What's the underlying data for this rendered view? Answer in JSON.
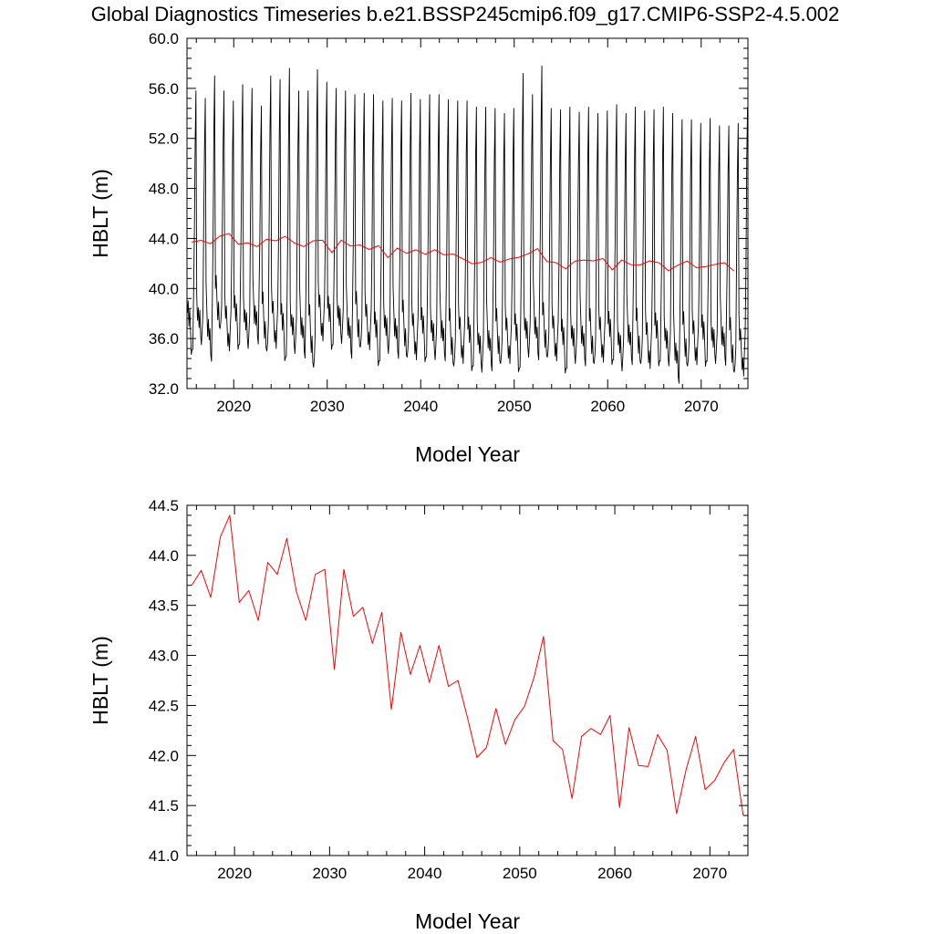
{
  "figure": {
    "title": "Global Diagnostics Timeseries b.e21.BSSP245cmip6.f09_g17.CMIP6-SSP2-4.5.002"
  },
  "colors": {
    "monthly": "#000000",
    "annual": "#ff0000"
  },
  "chart_data": [
    {
      "type": "line",
      "xlabel": "Model Year",
      "ylabel": "HBLT (m)",
      "xlim": [
        2015,
        2075
      ],
      "ylim": [
        32.0,
        60.0
      ],
      "x_ticks": [
        2020,
        2030,
        2040,
        2050,
        2060,
        2070
      ],
      "x_tick_labels": [
        "2020",
        "2030",
        "2040",
        "2050",
        "2060",
        "2070"
      ],
      "y_ticks": [
        32.0,
        36.0,
        40.0,
        44.0,
        48.0,
        52.0,
        56.0,
        60.0
      ],
      "y_tick_labels": [
        "32.0",
        "36.0",
        "40.0",
        "44.0",
        "48.0",
        "52.0",
        "56.0",
        "60.0"
      ],
      "grid": false,
      "series": [
        {
          "color": "#000000",
          "frequency": "monthly",
          "note_values": "annual max and min of the monthly seasonal cycle",
          "years": [
            2015,
            2016,
            2017,
            2018,
            2019,
            2020,
            2021,
            2022,
            2023,
            2024,
            2025,
            2026,
            2027,
            2028,
            2029,
            2030,
            2031,
            2032,
            2033,
            2034,
            2035,
            2036,
            2037,
            2038,
            2039,
            2040,
            2041,
            2042,
            2043,
            2044,
            2045,
            2046,
            2047,
            2048,
            2049,
            2050,
            2051,
            2052,
            2053,
            2054,
            2055,
            2056,
            2057,
            2058,
            2059,
            2060,
            2061,
            2062,
            2063,
            2064,
            2065,
            2066,
            2067,
            2068,
            2069,
            2070,
            2071,
            2072,
            2073,
            2074
          ],
          "annual_max": [
            55.8,
            55.2,
            57.0,
            55.8,
            55.0,
            56.3,
            56.0,
            54.6,
            57.0,
            56.7,
            57.6,
            55.8,
            55.8,
            57.5,
            56.5,
            56.0,
            55.8,
            55.5,
            55.6,
            55.5,
            55.0,
            55.2,
            55.0,
            55.6,
            55.1,
            55.5,
            55.5,
            55.1,
            55.0,
            55.0,
            54.5,
            54.5,
            54.4,
            54.0,
            54.4,
            57.2,
            55.5,
            57.8,
            54.4,
            54.3,
            54.5,
            54.1,
            54.5,
            54.0,
            54.2,
            54.7,
            54.0,
            54.5,
            54.2,
            54.3,
            54.5,
            54.0,
            53.5,
            53.5,
            53.2,
            53.6,
            53.0,
            53.0,
            53.2,
            54.5
          ],
          "annual_min": [
            35.1,
            35.5,
            34.7,
            36.8,
            35.0,
            35.5,
            35.2,
            36.2,
            35.0,
            35.2,
            34.5,
            34.8,
            35.0,
            33.7,
            35.8,
            35.5,
            35.6,
            35.0,
            35.3,
            35.1,
            34.2,
            34.8,
            35.0,
            34.5,
            34.3,
            34.5,
            34.3,
            34.8,
            33.8,
            34.0,
            33.8,
            33.3,
            34.0,
            34.0,
            34.0,
            33.6,
            34.5,
            34.8,
            34.5,
            34.2,
            33.6,
            34.0,
            34.4,
            34.0,
            34.1,
            34.3,
            33.4,
            34.5,
            34.0,
            33.6,
            34.2,
            33.8,
            33.0,
            33.8,
            33.9,
            34.2,
            34.0,
            34.5,
            33.3,
            33.0
          ]
        },
        {
          "color": "#ff0000",
          "frequency": "annual mean",
          "x": [
            2015.5,
            2016.5,
            2017.5,
            2018.5,
            2019.5,
            2020.5,
            2021.5,
            2022.5,
            2023.5,
            2024.5,
            2025.5,
            2026.5,
            2027.5,
            2028.5,
            2029.5,
            2030.5,
            2031.5,
            2032.5,
            2033.5,
            2034.5,
            2035.5,
            2036.5,
            2037.5,
            2038.5,
            2039.5,
            2040.5,
            2041.5,
            2042.5,
            2043.5,
            2044.5,
            2045.5,
            2046.5,
            2047.5,
            2048.5,
            2049.5,
            2050.5,
            2051.5,
            2052.5,
            2053.5,
            2054.5,
            2055.5,
            2056.5,
            2057.5,
            2058.5,
            2059.5,
            2060.5,
            2061.5,
            2062.5,
            2063.5,
            2064.5,
            2065.5,
            2066.5,
            2067.5,
            2068.5,
            2069.5,
            2070.5,
            2071.5,
            2072.5,
            2073.5
          ],
          "values": [
            43.7,
            43.85,
            43.58,
            44.18,
            44.4,
            43.53,
            43.65,
            43.35,
            43.93,
            43.81,
            44.17,
            43.64,
            43.35,
            43.81,
            43.86,
            42.86,
            43.86,
            43.39,
            43.48,
            43.12,
            43.43,
            42.46,
            43.23,
            42.81,
            43.1,
            42.73,
            43.1,
            42.69,
            42.75,
            42.38,
            41.98,
            42.08,
            42.47,
            42.11,
            42.36,
            42.49,
            42.78,
            43.19,
            42.15,
            42.06,
            41.57,
            42.19,
            42.27,
            42.21,
            42.4,
            41.48,
            42.28,
            41.9,
            41.89,
            42.21,
            42.05,
            41.42,
            41.86,
            42.19,
            41.66,
            41.75,
            41.93,
            42.06,
            41.4
          ]
        }
      ]
    },
    {
      "type": "line",
      "xlabel": "Model Year",
      "ylabel": "HBLT (m)",
      "xlim": [
        2015,
        2074
      ],
      "ylim": [
        41.0,
        44.5
      ],
      "x_ticks": [
        2020,
        2030,
        2040,
        2050,
        2060,
        2070
      ],
      "x_tick_labels": [
        "2020",
        "2030",
        "2040",
        "2050",
        "2060",
        "2070"
      ],
      "y_ticks": [
        41.0,
        41.5,
        42.0,
        42.5,
        43.0,
        43.5,
        44.0,
        44.5
      ],
      "y_tick_labels": [
        "41.0",
        "41.5",
        "42.0",
        "42.5",
        "43.0",
        "43.5",
        "44.0",
        "44.5"
      ],
      "grid": false,
      "series": [
        {
          "color": "#ff0000",
          "frequency": "annual mean",
          "x": [
            2015.5,
            2016.5,
            2017.5,
            2018.5,
            2019.5,
            2020.5,
            2021.5,
            2022.5,
            2023.5,
            2024.5,
            2025.5,
            2026.5,
            2027.5,
            2028.5,
            2029.5,
            2030.5,
            2031.5,
            2032.5,
            2033.5,
            2034.5,
            2035.5,
            2036.5,
            2037.5,
            2038.5,
            2039.5,
            2040.5,
            2041.5,
            2042.5,
            2043.5,
            2044.5,
            2045.5,
            2046.5,
            2047.5,
            2048.5,
            2049.5,
            2050.5,
            2051.5,
            2052.5,
            2053.5,
            2054.5,
            2055.5,
            2056.5,
            2057.5,
            2058.5,
            2059.5,
            2060.5,
            2061.5,
            2062.5,
            2063.5,
            2064.5,
            2065.5,
            2066.5,
            2067.5,
            2068.5,
            2069.5,
            2070.5,
            2071.5,
            2072.5,
            2073.5
          ],
          "values": [
            43.7,
            43.85,
            43.58,
            44.18,
            44.4,
            43.53,
            43.65,
            43.35,
            43.93,
            43.81,
            44.17,
            43.64,
            43.35,
            43.81,
            43.86,
            42.86,
            43.86,
            43.39,
            43.48,
            43.12,
            43.43,
            42.46,
            43.23,
            42.81,
            43.1,
            42.73,
            43.1,
            42.69,
            42.75,
            42.38,
            41.98,
            42.08,
            42.47,
            42.11,
            42.36,
            42.49,
            42.78,
            43.19,
            42.15,
            42.06,
            41.57,
            42.19,
            42.27,
            42.21,
            42.4,
            41.48,
            42.28,
            41.9,
            41.89,
            42.21,
            42.05,
            41.42,
            41.86,
            42.19,
            41.66,
            41.75,
            41.93,
            42.06,
            41.4
          ]
        }
      ]
    }
  ]
}
